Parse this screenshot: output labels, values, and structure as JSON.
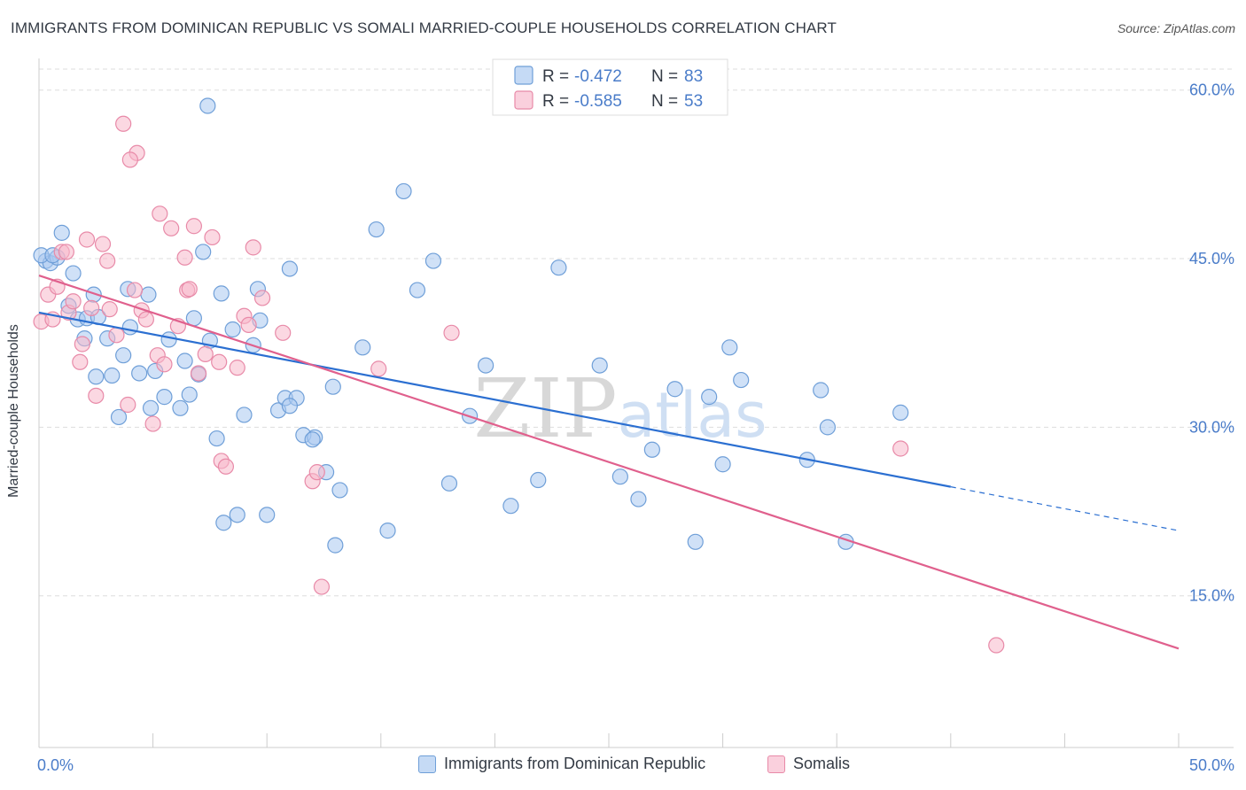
{
  "title": "IMMIGRANTS FROM DOMINICAN REPUBLIC VS SOMALI MARRIED-COUPLE HOUSEHOLDS CORRELATION CHART",
  "source": "Source: ZipAtlas.com",
  "watermark": {
    "zip": "ZIP",
    "atlas": "atlas"
  },
  "colors": {
    "blue_fill": "#a9c8f0",
    "blue_stroke": "#6f9fd8",
    "blue_line": "#2b6fd1",
    "pink_fill": "#f7b8cb",
    "pink_stroke": "#e88aa8",
    "pink_line": "#e0608d",
    "axis_text": "#4a7cc9",
    "grid": "#dddddd"
  },
  "legend": {
    "r_label": "R =",
    "n_label": "N =",
    "rows": [
      {
        "series": "blue",
        "r": "-0.472",
        "n": "83"
      },
      {
        "series": "pink",
        "r": "-0.585",
        "n": "53"
      }
    ]
  },
  "chart_data": {
    "type": "scatter",
    "xlabel": "",
    "ylabel": "Married-couple Households",
    "x_tick_labels": [
      "0.0%",
      "50.0%"
    ],
    "y_tick_labels": [
      "60.0%",
      "45.0%",
      "30.0%",
      "15.0%"
    ],
    "y_ticks": [
      60,
      45,
      30,
      15
    ],
    "xlim": [
      0,
      50
    ],
    "ylim": [
      1.5,
      62.5
    ],
    "grid": true,
    "legend_placement": "top-center",
    "series": [
      {
        "name": "Immigrants from Dominican Republic",
        "color": "blue",
        "trend": {
          "x0": 0,
          "y0": 40.2,
          "x1": 40,
          "y1": 24.7,
          "dashed_to_x": 50,
          "dashed_to_y": 20.8
        },
        "points": [
          [
            0.3,
            44.8
          ],
          [
            0.5,
            44.6
          ],
          [
            0.8,
            45.1
          ],
          [
            1.0,
            47.3
          ],
          [
            1.5,
            43.7
          ],
          [
            1.3,
            40.8
          ],
          [
            1.7,
            39.6
          ],
          [
            2.0,
            37.9
          ],
          [
            2.1,
            39.7
          ],
          [
            2.4,
            41.8
          ],
          [
            2.5,
            34.5
          ],
          [
            2.6,
            39.8
          ],
          [
            3.0,
            37.9
          ],
          [
            3.2,
            34.6
          ],
          [
            3.5,
            30.9
          ],
          [
            3.7,
            36.4
          ],
          [
            3.9,
            42.3
          ],
          [
            4.0,
            38.9
          ],
          [
            4.4,
            34.8
          ],
          [
            4.8,
            41.8
          ],
          [
            4.9,
            31.7
          ],
          [
            5.1,
            35.0
          ],
          [
            5.5,
            32.7
          ],
          [
            5.7,
            37.8
          ],
          [
            6.2,
            31.7
          ],
          [
            6.4,
            35.9
          ],
          [
            6.6,
            32.9
          ],
          [
            6.8,
            39.7
          ],
          [
            7.0,
            34.7
          ],
          [
            7.2,
            45.6
          ],
          [
            7.5,
            37.7
          ],
          [
            7.8,
            29.0
          ],
          [
            8.0,
            41.9
          ],
          [
            8.1,
            21.5
          ],
          [
            8.5,
            38.7
          ],
          [
            8.7,
            22.2
          ],
          [
            9.0,
            31.1
          ],
          [
            9.4,
            37.3
          ],
          [
            9.6,
            42.3
          ],
          [
            9.7,
            39.5
          ],
          [
            10.0,
            22.2
          ],
          [
            10.5,
            31.5
          ],
          [
            10.8,
            32.6
          ],
          [
            11.0,
            44.1
          ],
          [
            11.3,
            32.6
          ],
          [
            11.6,
            29.3
          ],
          [
            12.1,
            29.1
          ],
          [
            12.6,
            26.0
          ],
          [
            12.9,
            33.6
          ],
          [
            13.2,
            24.4
          ],
          [
            14.2,
            37.1
          ],
          [
            14.8,
            47.6
          ],
          [
            15.3,
            20.8
          ],
          [
            16.0,
            51.0
          ],
          [
            16.6,
            42.2
          ],
          [
            17.3,
            44.8
          ],
          [
            18.0,
            25.0
          ],
          [
            18.9,
            31.0
          ],
          [
            19.6,
            35.5
          ],
          [
            20.7,
            23.0
          ],
          [
            21.9,
            25.3
          ],
          [
            22.8,
            44.2
          ],
          [
            24.6,
            35.5
          ],
          [
            25.5,
            25.6
          ],
          [
            26.3,
            23.6
          ],
          [
            26.9,
            28.0
          ],
          [
            27.9,
            33.4
          ],
          [
            28.8,
            19.8
          ],
          [
            29.4,
            32.7
          ],
          [
            30.0,
            26.7
          ],
          [
            30.3,
            37.1
          ],
          [
            30.8,
            34.2
          ],
          [
            33.7,
            27.1
          ],
          [
            34.3,
            33.3
          ],
          [
            34.6,
            30.0
          ],
          [
            35.4,
            19.8
          ],
          [
            37.8,
            31.3
          ],
          [
            7.4,
            58.6
          ],
          [
            0.1,
            45.3
          ],
          [
            0.6,
            45.3
          ],
          [
            11.0,
            31.9
          ],
          [
            13.0,
            19.5
          ],
          [
            12.0,
            28.9
          ]
        ]
      },
      {
        "name": "Somalis",
        "color": "pink",
        "trend": {
          "x0": 0,
          "y0": 43.5,
          "x1": 50,
          "y1": 10.3
        },
        "points": [
          [
            0.1,
            39.4
          ],
          [
            0.4,
            41.8
          ],
          [
            0.6,
            39.6
          ],
          [
            0.8,
            42.5
          ],
          [
            1.0,
            45.6
          ],
          [
            1.2,
            45.6
          ],
          [
            1.3,
            40.2
          ],
          [
            1.5,
            41.2
          ],
          [
            1.8,
            35.8
          ],
          [
            1.9,
            37.4
          ],
          [
            2.1,
            46.7
          ],
          [
            2.5,
            32.8
          ],
          [
            2.8,
            46.3
          ],
          [
            3.0,
            44.8
          ],
          [
            3.1,
            40.5
          ],
          [
            3.4,
            38.2
          ],
          [
            3.7,
            57.0
          ],
          [
            3.9,
            32.0
          ],
          [
            4.2,
            42.2
          ],
          [
            4.3,
            54.4
          ],
          [
            4.5,
            40.4
          ],
          [
            4.7,
            39.6
          ],
          [
            5.0,
            30.3
          ],
          [
            5.2,
            36.4
          ],
          [
            5.3,
            49.0
          ],
          [
            5.5,
            35.6
          ],
          [
            5.8,
            47.7
          ],
          [
            6.1,
            39.0
          ],
          [
            6.4,
            45.1
          ],
          [
            6.5,
            42.2
          ],
          [
            6.6,
            42.3
          ],
          [
            6.8,
            47.9
          ],
          [
            7.0,
            34.8
          ],
          [
            7.3,
            36.5
          ],
          [
            7.6,
            46.9
          ],
          [
            7.9,
            35.8
          ],
          [
            8.0,
            27.0
          ],
          [
            8.2,
            26.5
          ],
          [
            8.7,
            35.3
          ],
          [
            9.0,
            39.9
          ],
          [
            9.2,
            39.1
          ],
          [
            9.4,
            46.0
          ],
          [
            9.8,
            41.5
          ],
          [
            10.7,
            38.4
          ],
          [
            12.0,
            25.2
          ],
          [
            12.2,
            26.0
          ],
          [
            12.4,
            15.8
          ],
          [
            14.9,
            35.2
          ],
          [
            18.1,
            38.4
          ],
          [
            37.8,
            28.1
          ],
          [
            42.0,
            10.6
          ],
          [
            4.0,
            53.8
          ],
          [
            2.3,
            40.6
          ]
        ]
      }
    ]
  }
}
